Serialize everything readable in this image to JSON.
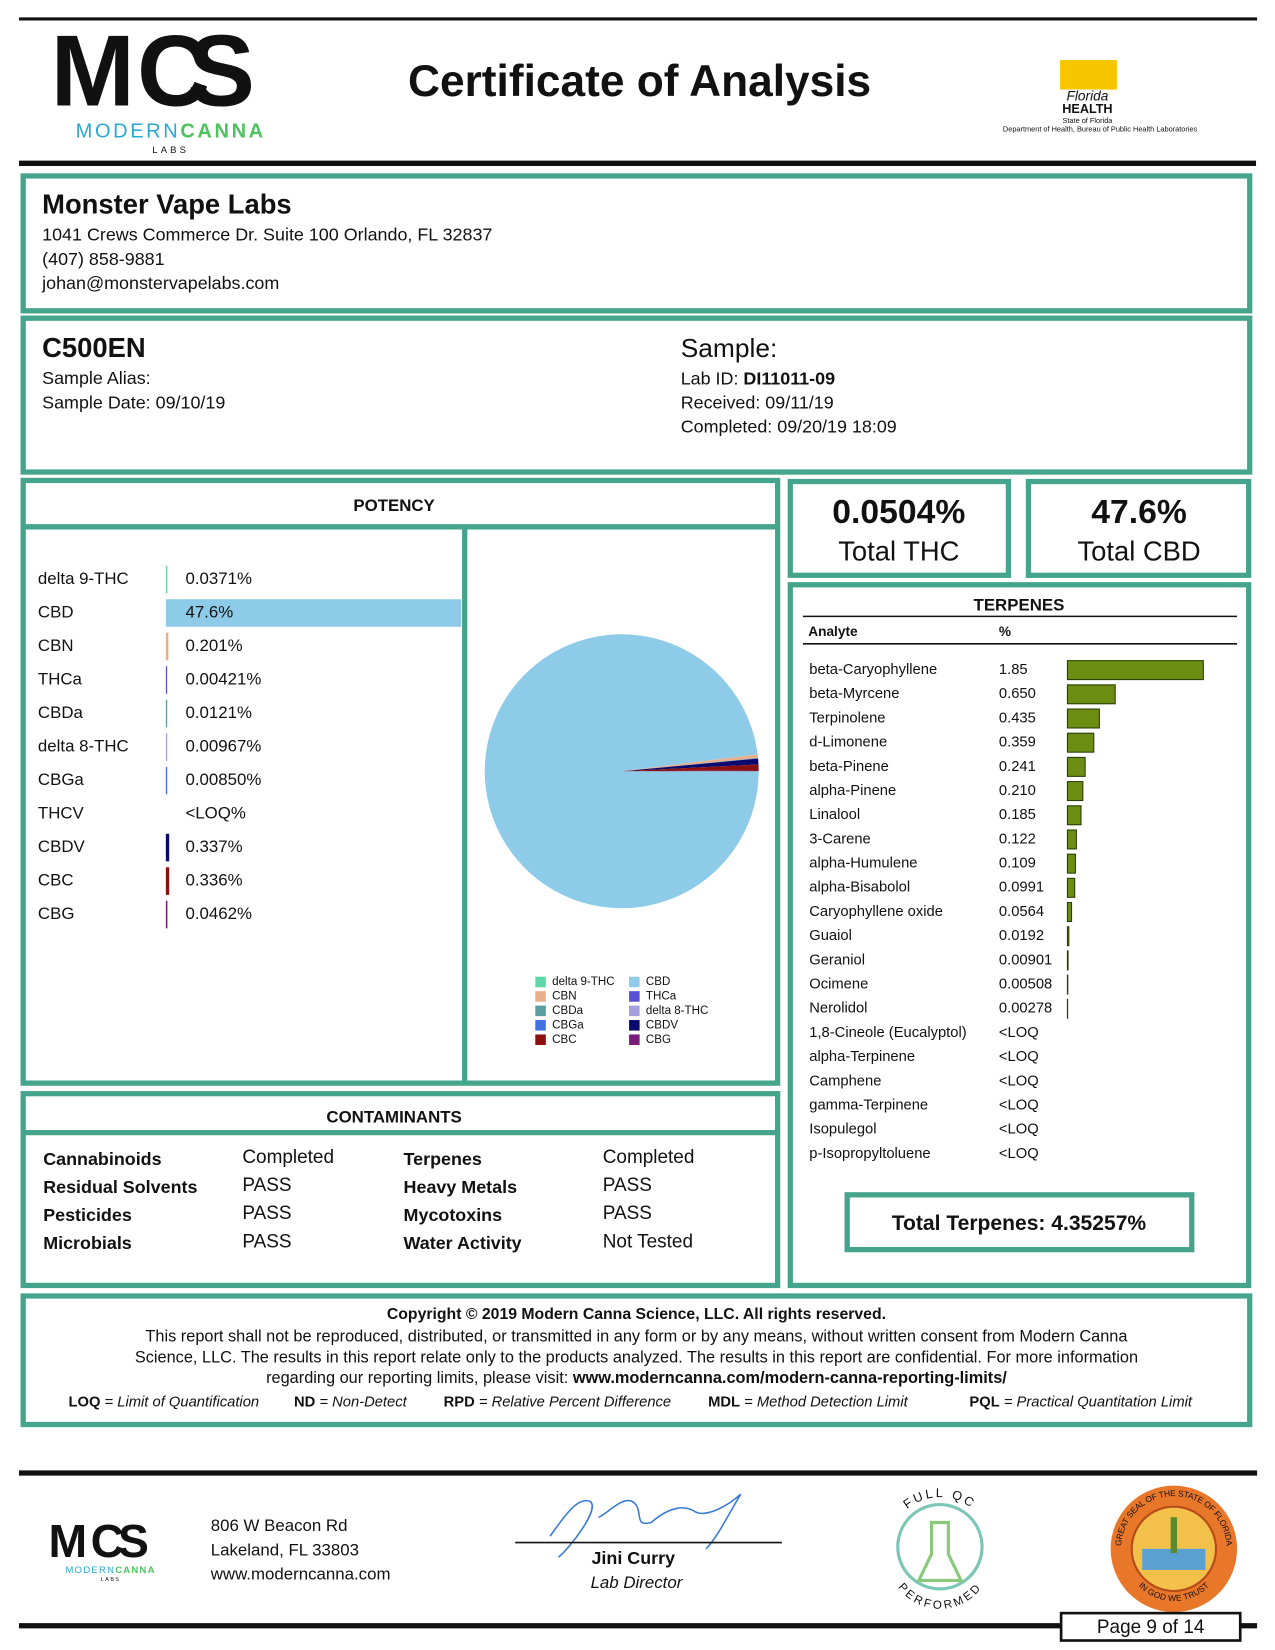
{
  "header": {
    "logo": {
      "letters": [
        "M",
        "C",
        "S"
      ],
      "name_1": "MODERN",
      "name_2": "CANNA",
      "sub": "LABS"
    },
    "title": "Certificate of Analysis",
    "florida": {
      "name": "Florida",
      "health": "HEALTH",
      "state": "State of Florida",
      "department": "Department of Health, Bureau of Public Health Laboratories"
    }
  },
  "client": {
    "name": "Monster Vape Labs",
    "address": "1041 Crews Commerce Dr. Suite 100 Orlando, FL 32837",
    "phone": "(407) 858-9881",
    "email": "johan@monstervapelabs.com"
  },
  "sample": {
    "name": "C500EN",
    "alias": "Sample Alias:",
    "date": "Sample Date: 09/10/19",
    "heading": "Sample:",
    "lab_id_label": "Lab ID: ",
    "lab_id": "DI11011-09",
    "received": "Received: 09/11/19",
    "completed": "Completed: 09/20/19 18:09"
  },
  "potency": {
    "title": "POTENCY",
    "rows": [
      {
        "name": "delta 9-THC",
        "value": 0.0371,
        "value_label": "0.0371%",
        "color": "#5fd6a8"
      },
      {
        "name": "CBD",
        "value": 47.6,
        "value_label": "47.6%",
        "color": "#8ecbe8"
      },
      {
        "name": "CBN",
        "value": 0.201,
        "value_label": "0.201%",
        "color": "#e8b08a"
      },
      {
        "name": "THCa",
        "value": 0.00421,
        "value_label": "0.00421%",
        "color": "#5b4fd6"
      },
      {
        "name": "CBDa",
        "value": 0.0121,
        "value_label": "0.0121%",
        "color": "#5a9ea0"
      },
      {
        "name": "delta 8-THC",
        "value": 0.00967,
        "value_label": "0.00967%",
        "color": "#a59fe0"
      },
      {
        "name": "CBGa",
        "value": 0.0085,
        "value_label": "0.00850%",
        "color": "#3f72e0"
      },
      {
        "name": "THCV",
        "value": null,
        "value_label": "<LOQ%"
      },
      {
        "name": "CBDV",
        "value": 0.337,
        "value_label": "0.337%",
        "color": "#0a0a6e"
      },
      {
        "name": "CBC",
        "value": 0.336,
        "value_label": "0.336%",
        "color": "#8b1010"
      },
      {
        "name": "CBG",
        "value": 0.0462,
        "value_label": "0.0462%",
        "color": "#7a1a7a"
      }
    ]
  },
  "totals": {
    "thc_value": "0.0504%",
    "thc_label": "Total THC",
    "cbd_value": "47.6%",
    "cbd_label": "Total CBD"
  },
  "terpenes": {
    "title": "TERPENES",
    "col_analyte": "Analyte",
    "col_percent": "%",
    "color": "#6b8e12",
    "rows": [
      {
        "name": "beta-Caryophyllene",
        "value": 1.85,
        "value_label": "1.85"
      },
      {
        "name": "beta-Myrcene",
        "value": 0.65,
        "value_label": "0.650"
      },
      {
        "name": "Terpinolene",
        "value": 0.435,
        "value_label": "0.435"
      },
      {
        "name": "d-Limonene",
        "value": 0.359,
        "value_label": "0.359"
      },
      {
        "name": "beta-Pinene",
        "value": 0.241,
        "value_label": "0.241"
      },
      {
        "name": "alpha-Pinene",
        "value": 0.21,
        "value_label": "0.210"
      },
      {
        "name": "Linalool",
        "value": 0.185,
        "value_label": "0.185"
      },
      {
        "name": "3-Carene",
        "value": 0.122,
        "value_label": "0.122"
      },
      {
        "name": "alpha-Humulene",
        "value": 0.109,
        "value_label": "0.109"
      },
      {
        "name": "alpha-Bisabolol",
        "value": 0.0991,
        "value_label": "0.0991"
      },
      {
        "name": "Caryophyllene oxide",
        "value": 0.0564,
        "value_label": "0.0564"
      },
      {
        "name": "Guaiol",
        "value": 0.0192,
        "value_label": "0.0192"
      },
      {
        "name": "Geraniol",
        "value": 0.00901,
        "value_label": "0.00901"
      },
      {
        "name": "Ocimene",
        "value": 0.00508,
        "value_label": "0.00508"
      },
      {
        "name": "Nerolidol",
        "value": 0.00278,
        "value_label": "0.00278"
      },
      {
        "name": "1,8-Cineole (Eucalyptol)",
        "value": null,
        "value_label": "<LOQ"
      },
      {
        "name": "alpha-Terpinene",
        "value": null,
        "value_label": "<LOQ"
      },
      {
        "name": "Camphene",
        "value": null,
        "value_label": "<LOQ"
      },
      {
        "name": "gamma-Terpinene",
        "value": null,
        "value_label": "<LOQ"
      },
      {
        "name": "Isopulegol",
        "value": null,
        "value_label": "<LOQ"
      },
      {
        "name": "p-Isopropyltoluene",
        "value": null,
        "value_label": "<LOQ"
      }
    ],
    "total": "Total Terpenes: 4.35257%"
  },
  "contaminants": {
    "title": "CONTAMINANTS",
    "items": [
      {
        "analyte": "Cannabinoids",
        "status": "Completed",
        "status_color": "#222222"
      },
      {
        "analyte": "Residual Solvents",
        "status": "PASS",
        "status_color": "#2e8b2e"
      },
      {
        "analyte": "Pesticides",
        "status": "PASS",
        "status_color": "#2e8b2e"
      },
      {
        "analyte": "Microbials",
        "status": "PASS",
        "status_color": "#2e8b2e"
      },
      {
        "analyte": "Terpenes",
        "status": "Completed",
        "status_color": "#222222"
      },
      {
        "analyte": "Heavy Metals",
        "status": "PASS",
        "status_color": "#2e8b2e"
      },
      {
        "analyte": "Mycotoxins",
        "status": "PASS",
        "status_color": "#2e8b2e"
      },
      {
        "analyte": "Water Activity",
        "status": "Not Tested",
        "status_color": "#222222"
      }
    ]
  },
  "footer": {
    "copyright": "Copyright © 2019 Modern Canna Science, LLC. All rights reserved.",
    "line_1": "This report shall not be reproduced, distributed, or transmitted in any form or by any means, without written consent from Modern Canna",
    "line_2": "Science, LLC.  The results in this report relate only to the products analyzed. The results in this report are confidential. For more information",
    "line_3": "regarding our reporting limits, please visit: ",
    "url": "www.moderncanna.com/modern-canna-reporting-limits/",
    "abbreviations": [
      {
        "abbr": "LOQ",
        "meaning": " = Limit of Quantification"
      },
      {
        "abbr": "ND",
        "meaning": " = Non-Detect"
      },
      {
        "abbr": "RPD",
        "meaning": " = Relative Percent Difference"
      },
      {
        "abbr": "MDL",
        "meaning": " = Method Detection Limit"
      },
      {
        "abbr": "PQL",
        "meaning": " = Practical Quantitation Limit"
      }
    ]
  },
  "bottom": {
    "address_1": "806 W Beacon Rd",
    "address_2": "Lakeland, FL 33803",
    "website": "www.moderncanna.com",
    "signer": "Jini Curry",
    "signer_title": "Lab Director",
    "badge_top": "FULL QC",
    "badge_bottom": "PERFORMED",
    "seal_top": "GREAT SEAL OF THE STATE OF FLORIDA",
    "seal_bottom": "IN GOD WE TRUST",
    "page": "Page 9 of 14"
  }
}
